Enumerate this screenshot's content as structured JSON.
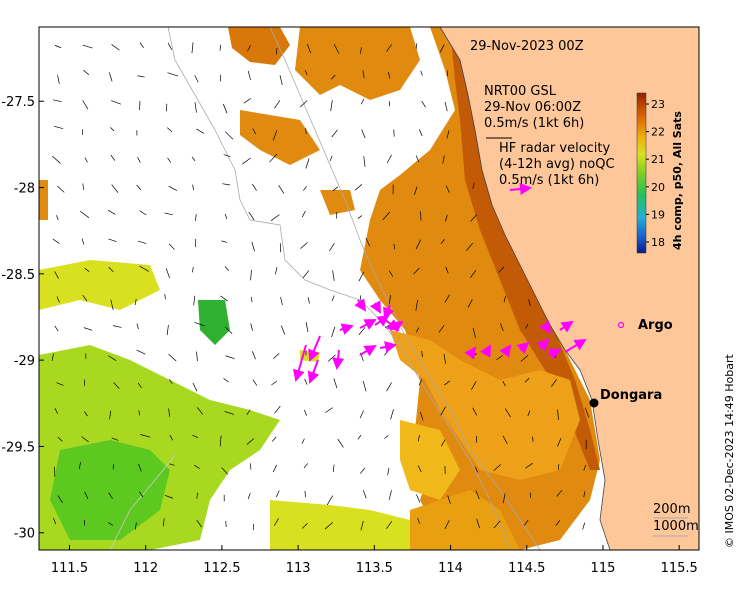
{
  "map": {
    "date_title": "29-Nov-2023 00Z",
    "x_ticks": [
      "111.5",
      "112",
      "112.5",
      "113",
      "113.5",
      "114",
      "114.5",
      "115",
      "115.5"
    ],
    "y_ticks": [
      "-27.5",
      "-28",
      "-28.5",
      "-29",
      "-29.5",
      "-30"
    ],
    "x_tick_values": [
      111.5,
      112,
      112.5,
      113,
      113.5,
      114,
      114.5,
      115,
      115.5
    ],
    "y_tick_values": [
      -27.5,
      -28,
      -28.5,
      -29,
      -29.5,
      -30
    ],
    "lon_range": [
      111.3,
      115.63
    ],
    "lat_range": [
      -30.1,
      -27.07
    ]
  },
  "legend": {
    "model_label": "NRT00 GSL",
    "model_time": "29-Nov 06:00Z",
    "model_scale": "0.5m/s (1kt 6h)",
    "radar_line1": "HF radar velocity",
    "radar_line2": "(4-12h avg) noQC",
    "radar_scale": "0.5m/s (1kt 6h)"
  },
  "colorbar": {
    "title": "4h comp, p50, All Sats",
    "ticks": [
      "23",
      "22",
      "21",
      "20",
      "19",
      "18"
    ],
    "tick_values": [
      23,
      22,
      21,
      20,
      19,
      18
    ],
    "range": [
      17.6,
      23.4
    ],
    "colors": [
      "#0a1a8a",
      "#1a5fd0",
      "#1fb0d8",
      "#20c060",
      "#7fd020",
      "#d8e020",
      "#f0b010",
      "#e07808",
      "#c04800",
      "#902000"
    ]
  },
  "places": {
    "argo": "Argo",
    "dongara": "Dongara"
  },
  "isobaths": {
    "shallow": "200m",
    "deep": "1000m"
  },
  "credit": "© IMOS 02-Dec-2023 14:49 Hobart"
}
